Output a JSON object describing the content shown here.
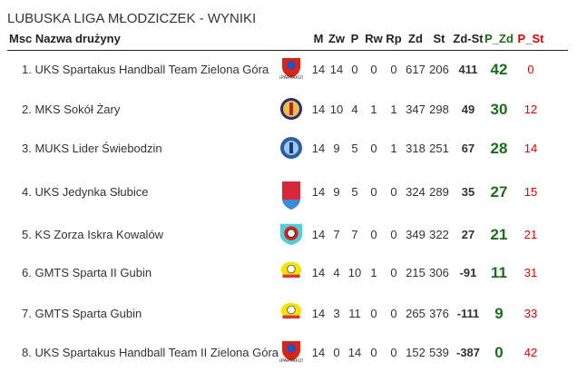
{
  "title": "LUBUSKA LIGA MŁODZICZEK - WYNIKI",
  "headers": {
    "msc_name": "Msc Nazwa drużyny",
    "m": "M",
    "zw": "Zw",
    "p": "P",
    "rw": "Rw",
    "rp": "Rp",
    "zd": "Zd",
    "st": "St",
    "zdst": "Zd-St",
    "pzd": "P_Zd",
    "pst": "P_St"
  },
  "colors": {
    "pzd": "#1a6e1a",
    "pst": "#e00000"
  },
  "rows": [
    {
      "name": "1. UKS Spartakus Handball Team Zielona Góra",
      "logo": "spartakus-logo",
      "m": "14",
      "zw": "14",
      "p": "0",
      "rw": "0",
      "rp": "0",
      "zd": "617",
      "st": "206",
      "zdst": "411",
      "pzd": "42",
      "pst": "0"
    },
    {
      "name": "2. MKS Sokół Żary",
      "logo": "sokol-logo",
      "m": "14",
      "zw": "10",
      "p": "4",
      "rw": "1",
      "rp": "1",
      "zd": "347",
      "st": "298",
      "zdst": "49",
      "pzd": "30",
      "pst": "12"
    },
    {
      "name": "3. MUKS Lider Świebodzin",
      "logo": "lider-logo",
      "m": "14",
      "zw": "9",
      "p": "5",
      "rw": "0",
      "rp": "1",
      "zd": "318",
      "st": "251",
      "zdst": "67",
      "pzd": "28",
      "pst": "14"
    },
    {
      "name": "4. UKS Jedynka Słubice",
      "logo": "jedynka-logo",
      "m": "14",
      "zw": "9",
      "p": "5",
      "rw": "0",
      "rp": "0",
      "zd": "324",
      "st": "289",
      "zdst": "35",
      "pzd": "27",
      "pst": "15"
    },
    {
      "name": "5. KS Zorza Iskra Kowalów",
      "logo": "zorza-logo",
      "m": "14",
      "zw": "7",
      "p": "7",
      "rw": "0",
      "rp": "0",
      "zd": "349",
      "st": "322",
      "zdst": "27",
      "pzd": "21",
      "pst": "21"
    },
    {
      "name": "6. GMTS Sparta II Gubin",
      "logo": "sparta-logo",
      "m": "14",
      "zw": "4",
      "p": "10",
      "rw": "1",
      "rp": "0",
      "zd": "215",
      "st": "306",
      "zdst": "-91",
      "pzd": "11",
      "pst": "31"
    },
    {
      "name": "7. GMTS Sparta Gubin",
      "logo": "sparta-logo",
      "m": "14",
      "zw": "3",
      "p": "11",
      "rw": "0",
      "rp": "0",
      "zd": "265",
      "st": "376",
      "zdst": "-111",
      "pzd": "9",
      "pst": "33"
    },
    {
      "name": "8. UKS Spartakus Handball Team II Zielona Góra",
      "logo": "spartakus-logo",
      "m": "14",
      "zw": "0",
      "p": "14",
      "rw": "0",
      "rp": "0",
      "zd": "152",
      "st": "539",
      "zdst": "-387",
      "pzd": "0",
      "pst": "42"
    }
  ]
}
